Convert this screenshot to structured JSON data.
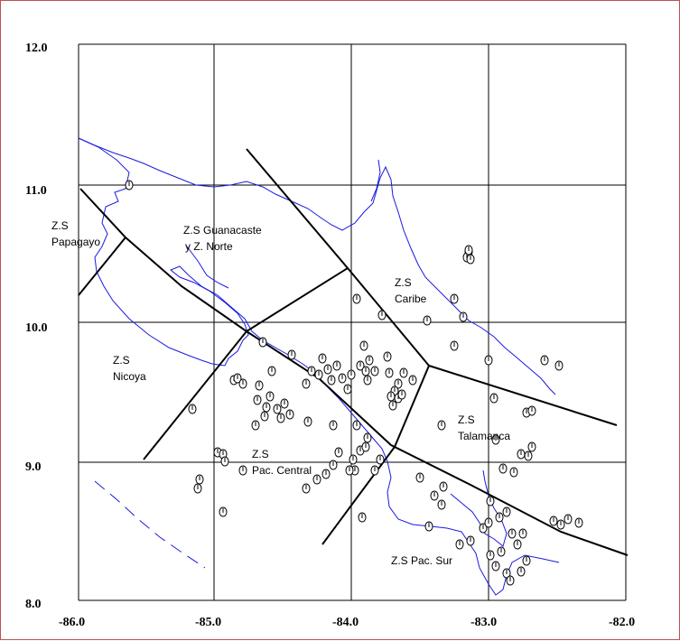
{
  "map": {
    "x_ticks": [
      "-86.0",
      "-85.0",
      "-84.0",
      "-83.0",
      "-82.0"
    ],
    "y_ticks": [
      "12.0",
      "11.0",
      "10.0",
      "9.0",
      "8.0"
    ],
    "colors": {
      "coast": "#1a1ae0",
      "border": "#000000",
      "frame": "#c05050"
    }
  },
  "zones": [
    {
      "id": "papagayo",
      "lines": [
        "Z.S",
        "Papagayo"
      ]
    },
    {
      "id": "guanacaste",
      "lines": [
        "Z.S Guanacaste",
        "y Z. Norte"
      ]
    },
    {
      "id": "caribe",
      "lines": [
        "Z.S",
        "Caribe"
      ]
    },
    {
      "id": "nicoya",
      "lines": [
        "Z.S",
        "Nicoya"
      ]
    },
    {
      "id": "pac-central",
      "lines": [
        "Z.S",
        "Pac. Central"
      ]
    },
    {
      "id": "talamanca",
      "lines": [
        "Z.S",
        "Talamanca"
      ]
    },
    {
      "id": "pac-sur",
      "lines": [
        "Z.S Pac. Sur"
      ]
    }
  ]
}
